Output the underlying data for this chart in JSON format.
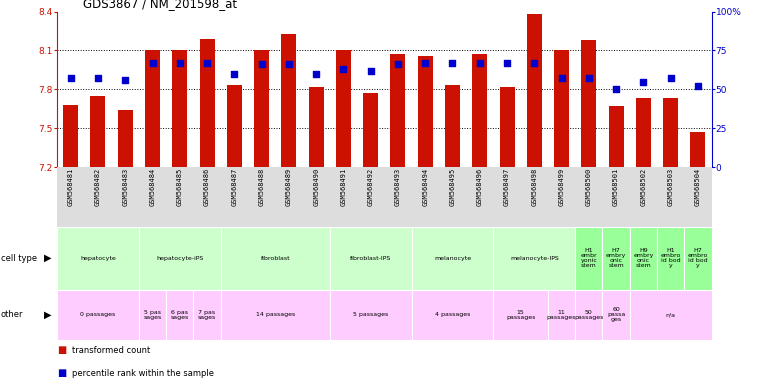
{
  "title": "GDS3867 / NM_201598_at",
  "samples": [
    "GSM568481",
    "GSM568482",
    "GSM568483",
    "GSM568484",
    "GSM568485",
    "GSM568486",
    "GSM568487",
    "GSM568488",
    "GSM568489",
    "GSM568490",
    "GSM568491",
    "GSM568492",
    "GSM568493",
    "GSM568494",
    "GSM568495",
    "GSM568496",
    "GSM568497",
    "GSM568498",
    "GSM568499",
    "GSM568500",
    "GSM568501",
    "GSM568502",
    "GSM568503",
    "GSM568504"
  ],
  "bar_values": [
    7.68,
    7.75,
    7.64,
    8.1,
    8.1,
    8.19,
    7.83,
    8.1,
    8.23,
    7.82,
    8.1,
    7.77,
    8.07,
    8.06,
    7.83,
    8.07,
    7.82,
    8.38,
    8.1,
    8.18,
    7.67,
    7.73,
    7.73,
    7.47
  ],
  "percentile_values": [
    57,
    57,
    56,
    67,
    67,
    67,
    60,
    66,
    66,
    60,
    63,
    62,
    66,
    67,
    67,
    67,
    67,
    67,
    57,
    57,
    50,
    55,
    57,
    52
  ],
  "ymin": 7.2,
  "ymax": 8.4,
  "y_ticks": [
    7.2,
    7.5,
    7.8,
    8.1,
    8.4
  ],
  "pct_ticks": [
    0,
    25,
    50,
    75,
    100
  ],
  "bar_color": "#cc1100",
  "dot_color": "#0000cc",
  "axis_color_left": "#cc1100",
  "axis_color_right": "#0000cc",
  "label_bg_color": "#dddddd",
  "cell_groups": [
    {
      "start": 0,
      "end": 2,
      "label": "hepatocyte",
      "color": "#ccffcc"
    },
    {
      "start": 3,
      "end": 5,
      "label": "hepatocyte-iPS",
      "color": "#ccffcc"
    },
    {
      "start": 6,
      "end": 9,
      "label": "fibroblast",
      "color": "#ccffcc"
    },
    {
      "start": 10,
      "end": 12,
      "label": "fibroblast-IPS",
      "color": "#ccffcc"
    },
    {
      "start": 13,
      "end": 15,
      "label": "melanocyte",
      "color": "#ccffcc"
    },
    {
      "start": 16,
      "end": 18,
      "label": "melanocyte-IPS",
      "color": "#ccffcc"
    },
    {
      "start": 19,
      "end": 19,
      "label": "H1\nembr\nyonic\nstem",
      "color": "#99ff99"
    },
    {
      "start": 20,
      "end": 20,
      "label": "H7\nembry\nonic\nstem",
      "color": "#99ff99"
    },
    {
      "start": 21,
      "end": 21,
      "label": "H9\nembry\nonic\nstem",
      "color": "#99ff99"
    },
    {
      "start": 22,
      "end": 22,
      "label": "H1\nembro\nid bod\ny",
      "color": "#99ff99"
    },
    {
      "start": 23,
      "end": 23,
      "label": "H7\nembro\nid bod\ny",
      "color": "#99ff99"
    }
  ],
  "other_groups": [
    {
      "start": 0,
      "end": 2,
      "label": "0 passages",
      "color": "#ffccff"
    },
    {
      "start": 3,
      "end": 3,
      "label": "5 pas\nsages",
      "color": "#ffccff"
    },
    {
      "start": 4,
      "end": 4,
      "label": "6 pas\nsages",
      "color": "#ffccff"
    },
    {
      "start": 5,
      "end": 5,
      "label": "7 pas\nsages",
      "color": "#ffccff"
    },
    {
      "start": 6,
      "end": 9,
      "label": "14 passages",
      "color": "#ffccff"
    },
    {
      "start": 10,
      "end": 12,
      "label": "5 passages",
      "color": "#ffccff"
    },
    {
      "start": 13,
      "end": 15,
      "label": "4 passages",
      "color": "#ffccff"
    },
    {
      "start": 16,
      "end": 17,
      "label": "15\npassages",
      "color": "#ffccff"
    },
    {
      "start": 18,
      "end": 18,
      "label": "11\npassages",
      "color": "#ffccff"
    },
    {
      "start": 19,
      "end": 19,
      "label": "50\npassages",
      "color": "#ffccff"
    },
    {
      "start": 20,
      "end": 20,
      "label": "60\npassa\nges",
      "color": "#ffccff"
    },
    {
      "start": 21,
      "end": 23,
      "label": "n/a",
      "color": "#ffccff"
    }
  ],
  "legend_items": [
    {
      "color": "#cc1100",
      "label": "transformed count"
    },
    {
      "color": "#0000cc",
      "label": "percentile rank within the sample"
    }
  ]
}
